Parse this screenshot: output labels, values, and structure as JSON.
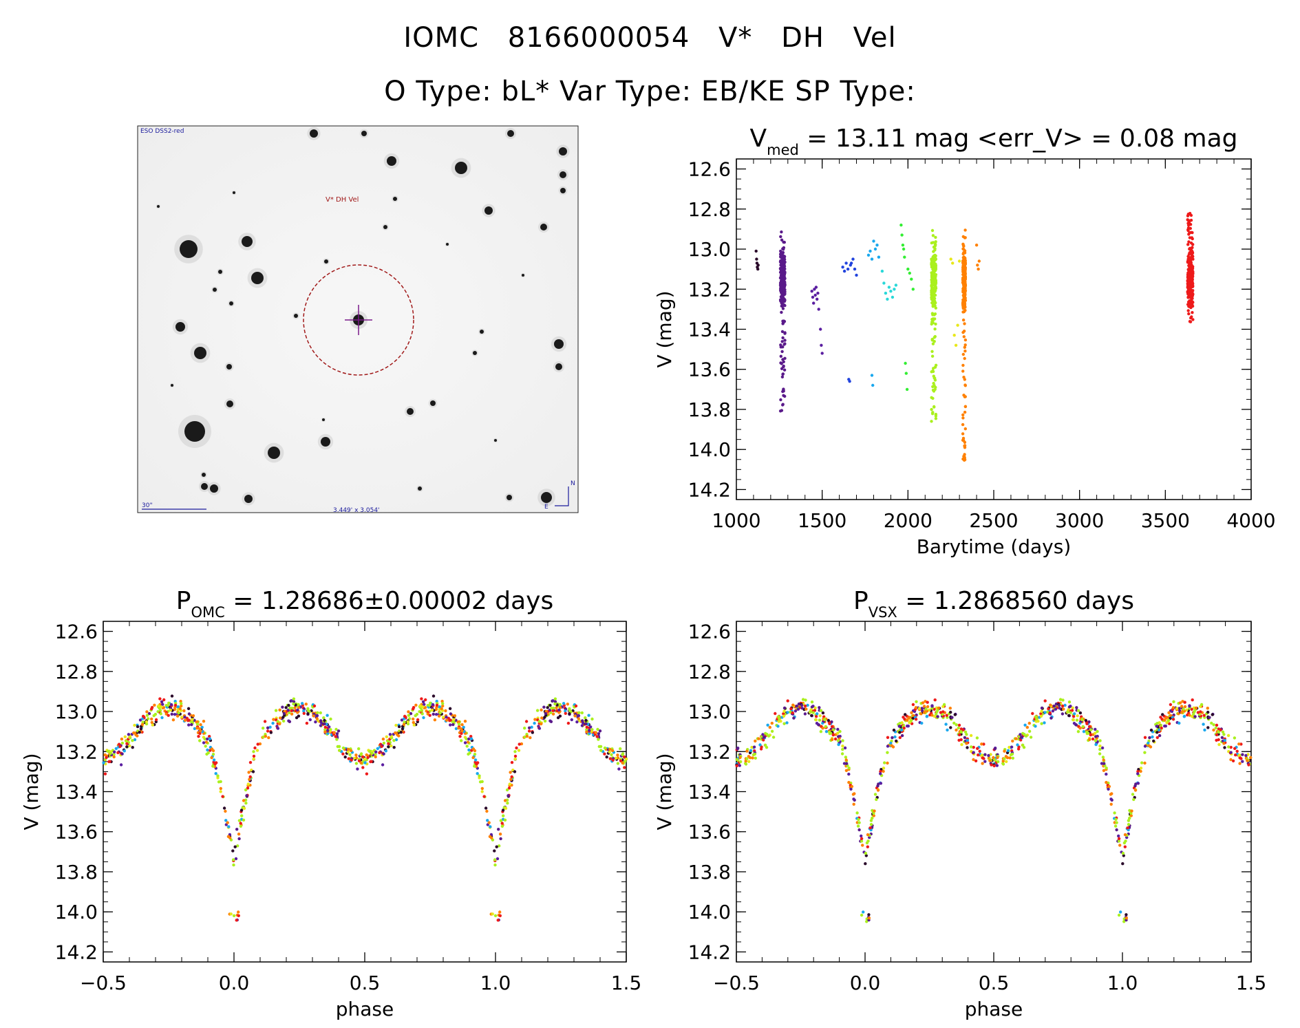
{
  "header": {
    "title_line1": "IOMC 8166000054   V* DH Vel",
    "title_line2": "O Type: bL*  Var Type: EB/KE  SP Type:"
  },
  "sky_image": {
    "survey_label": "ESO DSS2-red",
    "target_label": "V* DH Vel",
    "scale_label": "30\"",
    "fov_label": "3.449' x 3.054'",
    "north_label": "N",
    "east_label": "E",
    "circle_color": "#a01818",
    "crosshair_color": "#7a1a8a",
    "annotation_color": "#1a1a9c"
  },
  "season_colors": [
    "#2a0a2a",
    "#5a1a8a",
    "#5a1ea0",
    "#2244dd",
    "#1aa8ee",
    "#2ad8d8",
    "#33ee33",
    "#aaf01e",
    "#e8e81a",
    "#ff8000",
    "#ee1a1a"
  ],
  "chart_data": [
    {
      "id": "lightcurve",
      "type": "scatter",
      "title_main": "V",
      "title_sub": "med",
      "title_rest": " = 13.11 mag <err_V> = 0.08 mag",
      "xlabel": "Barytime (days)",
      "ylabel": "V (mag)",
      "xlim": [
        1000,
        4000
      ],
      "ylim": [
        14.25,
        12.55
      ],
      "xticks": [
        1000,
        1500,
        2000,
        2500,
        3000,
        3500,
        4000
      ],
      "yticks": [
        12.6,
        12.8,
        13.0,
        13.2,
        13.4,
        13.6,
        13.8,
        14.0,
        14.2
      ],
      "series": [
        {
          "name": "1130",
          "color_index": 0,
          "t": [
            1115,
            1118,
            1120,
            1122,
            1125,
            1127
          ],
          "v": [
            13.01,
            13.05,
            13.07,
            13.09,
            13.1,
            13.08
          ]
        },
        {
          "name": "1270",
          "color_index": 1,
          "t_range": [
            1240,
            1300
          ],
          "v_range": [
            12.86,
            13.81
          ]
        },
        {
          "name": "1470",
          "color_index": 2,
          "t": [
            1440,
            1445,
            1450,
            1455,
            1460,
            1465,
            1470,
            1475,
            1480,
            1490,
            1495,
            1500
          ],
          "v": [
            13.21,
            13.24,
            13.27,
            13.2,
            13.23,
            13.19,
            13.25,
            13.22,
            13.3,
            13.4,
            13.48,
            13.52
          ]
        },
        {
          "name": "1660",
          "color_index": 3,
          "t": [
            1620,
            1630,
            1640,
            1650,
            1655,
            1660,
            1665,
            1670,
            1680,
            1690,
            1700
          ],
          "v": [
            13.09,
            13.11,
            13.07,
            13.1,
            13.65,
            13.66,
            13.08,
            13.07,
            13.05,
            13.1,
            13.13
          ]
        },
        {
          "name": "1800",
          "color_index": 4,
          "t": [
            1770,
            1780,
            1790,
            1800,
            1810,
            1820,
            1830,
            1790,
            1795
          ],
          "v": [
            13.03,
            13.01,
            13.05,
            12.96,
            13.0,
            12.98,
            13.04,
            13.63,
            13.68
          ]
        },
        {
          "name": "1910",
          "color_index": 5,
          "t": [
            1850,
            1860,
            1870,
            1880,
            1890,
            1900,
            1910,
            1920,
            1930
          ],
          "v": [
            13.11,
            13.17,
            13.22,
            13.25,
            13.19,
            13.21,
            13.24,
            13.2,
            13.18
          ]
        },
        {
          "name": "2000",
          "color_index": 6,
          "t": [
            1960,
            1965,
            1970,
            1975,
            1980,
            1985,
            1990,
            1995,
            2000,
            2010,
            2020,
            2030
          ],
          "v": [
            12.88,
            12.93,
            12.98,
            13.0,
            13.04,
            13.57,
            13.62,
            13.7,
            13.1,
            13.12,
            13.15,
            13.2
          ]
        },
        {
          "name": "2150",
          "color_index": 7,
          "t_range": [
            2120,
            2180
          ],
          "v_range": [
            12.9,
            13.87
          ]
        },
        {
          "name": "2270",
          "color_index": 8,
          "t": [
            2250,
            2260,
            2270,
            2280,
            2290,
            2300
          ],
          "v": [
            13.05,
            13.07,
            13.43,
            13.48,
            13.38,
            13.06
          ]
        },
        {
          "name": "2330",
          "color_index": 9,
          "t_range": [
            2310,
            2345
          ],
          "v_range": [
            12.9,
            14.06
          ]
        },
        {
          "name": "2410",
          "color_index": 9,
          "t": [
            2400,
            2405,
            2410,
            2415
          ],
          "v": [
            12.98,
            13.08,
            13.1,
            13.06
          ]
        },
        {
          "name": "3650",
          "color_index": 10,
          "t_range": [
            3610,
            3680
          ],
          "v_range": [
            12.8,
            13.39
          ]
        }
      ]
    },
    {
      "id": "phase_omc",
      "type": "scatter",
      "title_main": "P",
      "title_sub": "OMC",
      "title_rest": " = 1.28686±0.00002 days",
      "xlabel": "phase",
      "ylabel": "V (mag)",
      "xlim": [
        -0.5,
        1.5
      ],
      "ylim": [
        14.25,
        12.55
      ],
      "xticks": [
        -0.5,
        0.0,
        0.5,
        1.0,
        1.5
      ],
      "xtick_labels": [
        "−0.5",
        "0.0",
        "0.5",
        "1.0",
        "1.5"
      ],
      "yticks": [
        12.6,
        12.8,
        13.0,
        13.2,
        13.4,
        13.6,
        13.8,
        14.0,
        14.2
      ],
      "curve_model": {
        "max_mag": 12.98,
        "quad_mag": 13.24,
        "primary_min_mag": 13.75,
        "secondary_min_mag": 13.24,
        "scatter_mag": 0.08,
        "deep_min_mag": 14.05
      }
    },
    {
      "id": "phase_vsx",
      "type": "scatter",
      "title_main": "P",
      "title_sub": "VSX",
      "title_rest": " = 1.2868560 days",
      "xlabel": "phase",
      "ylabel": "V (mag)",
      "xlim": [
        -0.5,
        1.5
      ],
      "ylim": [
        14.25,
        12.55
      ],
      "xticks": [
        -0.5,
        0.0,
        0.5,
        1.0,
        1.5
      ],
      "xtick_labels": [
        "−0.5",
        "0.0",
        "0.5",
        "1.0",
        "1.5"
      ],
      "yticks": [
        12.6,
        12.8,
        13.0,
        13.2,
        13.4,
        13.6,
        13.8,
        14.0,
        14.2
      ],
      "curve_model": {
        "max_mag": 12.98,
        "quad_mag": 13.24,
        "primary_min_mag": 13.75,
        "secondary_min_mag": 13.24,
        "scatter_mag": 0.08,
        "deep_min_mag": 14.05
      }
    }
  ]
}
